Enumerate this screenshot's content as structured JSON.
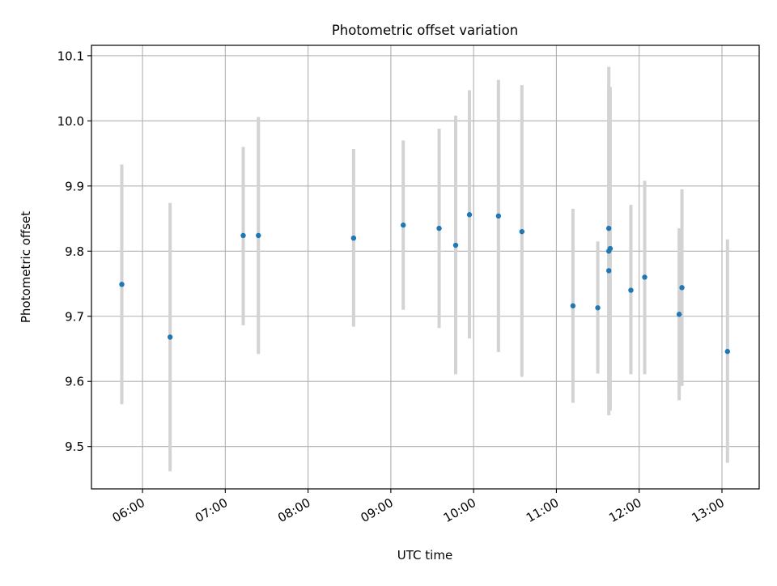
{
  "chart_data": {
    "type": "scatter",
    "title": "Photometric offset variation",
    "xlabel": "UTC time",
    "ylabel": "Photometric offset",
    "xlim": [
      "05:23",
      "13:27"
    ],
    "ylim": [
      9.435,
      10.116
    ],
    "x_ticks": [
      "06:00",
      "07:00",
      "08:00",
      "09:00",
      "10:00",
      "11:00",
      "12:00",
      "13:00"
    ],
    "y_ticks": [
      9.5,
      9.6,
      9.7,
      9.8,
      9.9,
      10.0,
      10.1
    ],
    "y_tick_labels": [
      "9.5",
      "9.6",
      "9.7",
      "9.8",
      "9.9",
      "10.0",
      "10.1"
    ],
    "grid": true,
    "marker_color": "#1f77b4",
    "errorbar_color": "#d3d3d3",
    "series": [
      {
        "points": [
          {
            "x": "05:45",
            "y": 9.749,
            "ylow": 9.565,
            "yhigh": 9.933
          },
          {
            "x": "06:20",
            "y": 9.668,
            "ylow": 9.462,
            "yhigh": 9.874
          },
          {
            "x": "07:13",
            "y": 9.824,
            "ylow": 9.686,
            "yhigh": 9.96
          },
          {
            "x": "07:24",
            "y": 9.824,
            "ylow": 9.642,
            "yhigh": 10.006
          },
          {
            "x": "08:33",
            "y": 9.82,
            "ylow": 9.684,
            "yhigh": 9.957
          },
          {
            "x": "09:09",
            "y": 9.84,
            "ylow": 9.71,
            "yhigh": 9.97
          },
          {
            "x": "09:35",
            "y": 9.835,
            "ylow": 9.682,
            "yhigh": 9.988
          },
          {
            "x": "09:47",
            "y": 9.809,
            "ylow": 9.611,
            "yhigh": 10.008
          },
          {
            "x": "09:57",
            "y": 9.856,
            "ylow": 9.666,
            "yhigh": 10.047
          },
          {
            "x": "10:18",
            "y": 9.854,
            "ylow": 9.645,
            "yhigh": 10.063
          },
          {
            "x": "10:35",
            "y": 9.83,
            "ylow": 9.607,
            "yhigh": 10.055
          },
          {
            "x": "11:12",
            "y": 9.716,
            "ylow": 9.567,
            "yhigh": 9.865
          },
          {
            "x": "11:30",
            "y": 9.713,
            "ylow": 9.612,
            "yhigh": 9.815
          },
          {
            "x": "11:38",
            "y": 9.77,
            "ylow": 9.618,
            "yhigh": 9.924
          },
          {
            "x": "11:38",
            "y": 9.835,
            "ylow": 9.586,
            "yhigh": 10.083
          },
          {
            "x": "11:38",
            "y": 9.8,
            "ylow": 9.548,
            "yhigh": 10.053
          },
          {
            "x": "11:39",
            "y": 9.804,
            "ylow": 9.555,
            "yhigh": 10.052
          },
          {
            "x": "11:54",
            "y": 9.74,
            "ylow": 9.611,
            "yhigh": 9.871
          },
          {
            "x": "12:04",
            "y": 9.76,
            "ylow": 9.611,
            "yhigh": 9.908
          },
          {
            "x": "12:29",
            "y": 9.703,
            "ylow": 9.571,
            "yhigh": 9.835
          },
          {
            "x": "12:31",
            "y": 9.744,
            "ylow": 9.593,
            "yhigh": 9.895
          },
          {
            "x": "13:04",
            "y": 9.646,
            "ylow": 9.475,
            "yhigh": 9.818
          }
        ]
      }
    ]
  }
}
